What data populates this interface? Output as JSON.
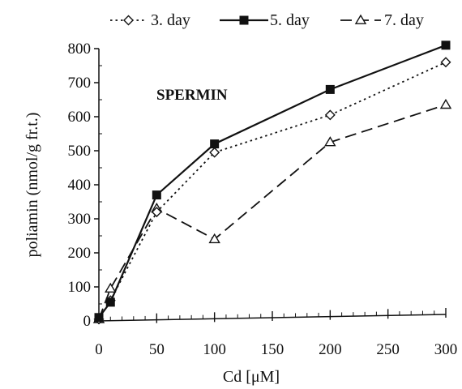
{
  "chart_data": {
    "type": "line",
    "annotation": "SPERMIN",
    "xlabel": "Cd [μM]",
    "ylabel": "poliamin (nmol/g fr.t.)",
    "xlim": [
      0,
      300
    ],
    "ylim": [
      0,
      800
    ],
    "x_ticks": [
      "0",
      "50",
      "100",
      "150",
      "200",
      "250",
      "300"
    ],
    "y_ticks": [
      "0",
      "100",
      "200",
      "300",
      "400",
      "500",
      "600",
      "700",
      "800"
    ],
    "x": [
      0,
      10,
      50,
      100,
      200,
      300
    ],
    "series": [
      {
        "name": "3. day",
        "marker": "diamond",
        "dash": "dotted",
        "values": [
          5,
          60,
          320,
          495,
          605,
          760
        ]
      },
      {
        "name": "5. day",
        "marker": "square",
        "dash": "solid",
        "values": [
          10,
          55,
          370,
          520,
          680,
          810
        ]
      },
      {
        "name": "7. day",
        "marker": "triangle",
        "dash": "dashed",
        "values": [
          5,
          95,
          330,
          240,
          525,
          635
        ]
      }
    ],
    "legend_position": "top",
    "grid": false
  }
}
